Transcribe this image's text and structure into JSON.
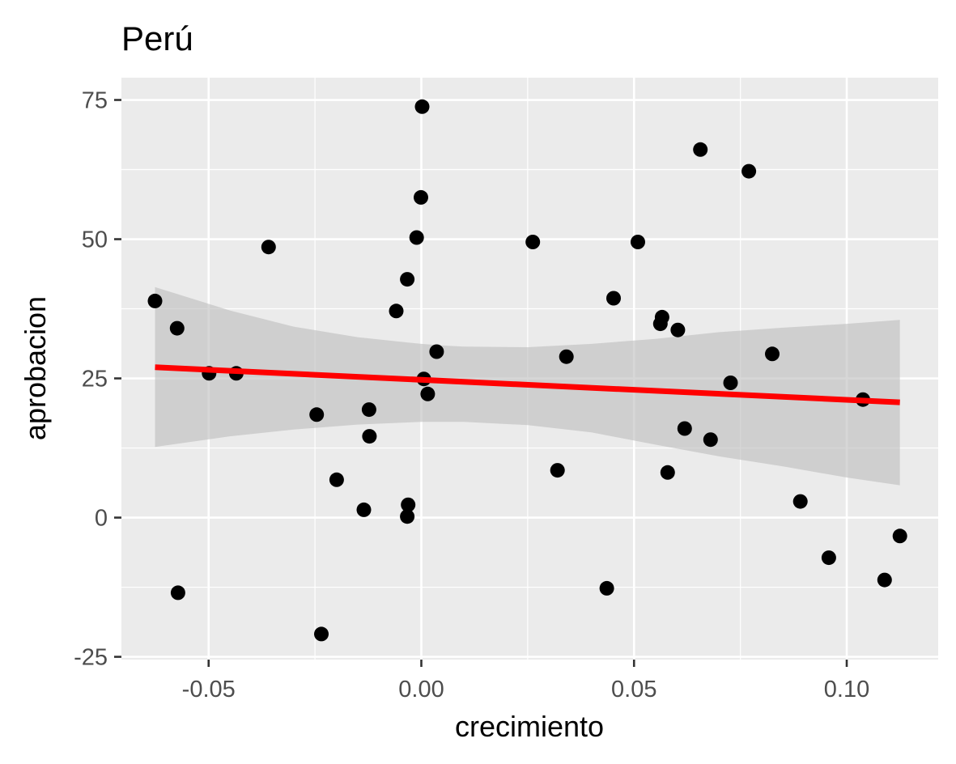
{
  "chart_data": {
    "type": "scatter",
    "title": "Perú",
    "xlabel": "crecimiento",
    "ylabel": "aprobacion",
    "xlim": [
      -0.0705,
      0.1215
    ],
    "ylim": [
      -25.5,
      79
    ],
    "x_ticks": [
      -0.05,
      0.0,
      0.05,
      0.1
    ],
    "x_tick_labels": [
      "-0.05",
      "0.00",
      "0.05",
      "0.10"
    ],
    "y_ticks": [
      -25,
      0,
      25,
      50,
      75
    ],
    "y_tick_labels": [
      "-25",
      "0",
      "25",
      "50",
      "75"
    ],
    "grid": true,
    "colors": {
      "panel_background": "#ebebeb",
      "grid": "#ffffff",
      "points": "#000000",
      "fit_line": "#ff0000",
      "confidence_band": "#bfbfbf"
    },
    "points": [
      {
        "x": -0.0626,
        "y": 38.9
      },
      {
        "x": -0.0574,
        "y": 34.0
      },
      {
        "x": -0.0572,
        "y": -13.5
      },
      {
        "x": -0.0499,
        "y": 25.9
      },
      {
        "x": -0.0435,
        "y": 25.9
      },
      {
        "x": -0.0359,
        "y": 48.6
      },
      {
        "x": -0.0246,
        "y": 18.5
      },
      {
        "x": -0.0235,
        "y": -20.9
      },
      {
        "x": -0.0199,
        "y": 6.8
      },
      {
        "x": -0.0135,
        "y": 1.4
      },
      {
        "x": -0.0123,
        "y": 19.4
      },
      {
        "x": -0.0122,
        "y": 14.6
      },
      {
        "x": -0.0059,
        "y": 37.1
      },
      {
        "x": -0.0033,
        "y": 42.8
      },
      {
        "x": -0.0033,
        "y": 0.2
      },
      {
        "x": -0.0031,
        "y": 2.3
      },
      {
        "x": -0.0011,
        "y": 50.3
      },
      {
        "x": -0.0001,
        "y": 57.5
      },
      {
        "x": 0.0002,
        "y": 73.8
      },
      {
        "x": 0.0006,
        "y": 24.9
      },
      {
        "x": 0.0015,
        "y": 22.2
      },
      {
        "x": 0.0036,
        "y": 29.8
      },
      {
        "x": 0.0262,
        "y": 49.5
      },
      {
        "x": 0.032,
        "y": 8.5
      },
      {
        "x": 0.0341,
        "y": 28.9
      },
      {
        "x": 0.0436,
        "y": -12.7
      },
      {
        "x": 0.0452,
        "y": 39.4
      },
      {
        "x": 0.0509,
        "y": 49.5
      },
      {
        "x": 0.0562,
        "y": 34.8
      },
      {
        "x": 0.0566,
        "y": 36.0
      },
      {
        "x": 0.0579,
        "y": 8.1
      },
      {
        "x": 0.0603,
        "y": 33.7
      },
      {
        "x": 0.0619,
        "y": 16.0
      },
      {
        "x": 0.0656,
        "y": 66.1
      },
      {
        "x": 0.068,
        "y": 14.0
      },
      {
        "x": 0.0727,
        "y": 24.2
      },
      {
        "x": 0.077,
        "y": 62.2
      },
      {
        "x": 0.0825,
        "y": 29.4
      },
      {
        "x": 0.0891,
        "y": 2.9
      },
      {
        "x": 0.0958,
        "y": -7.2
      },
      {
        "x": 0.1038,
        "y": 21.2
      },
      {
        "x": 0.1089,
        "y": -11.2
      },
      {
        "x": 0.1125,
        "y": -3.3
      }
    ],
    "fit": {
      "x": [
        -0.0626,
        0.1125
      ],
      "y": [
        27.0,
        20.7
      ]
    },
    "confidence_band": {
      "x": [
        -0.0626,
        -0.045,
        -0.03,
        -0.015,
        0.0,
        0.005,
        0.01,
        0.025,
        0.04,
        0.055,
        0.07,
        0.085,
        0.1,
        0.1125
      ],
      "upper": [
        41.4,
        37.2,
        34.3,
        32.4,
        31.2,
        30.9,
        30.7,
        30.6,
        31.2,
        32.1,
        33.3,
        34.1,
        34.8,
        35.5
      ],
      "lower": [
        12.7,
        14.6,
        15.8,
        16.7,
        17.2,
        17.2,
        17.2,
        16.6,
        15.3,
        13.1,
        11.0,
        9.2,
        7.2,
        5.8
      ]
    }
  }
}
